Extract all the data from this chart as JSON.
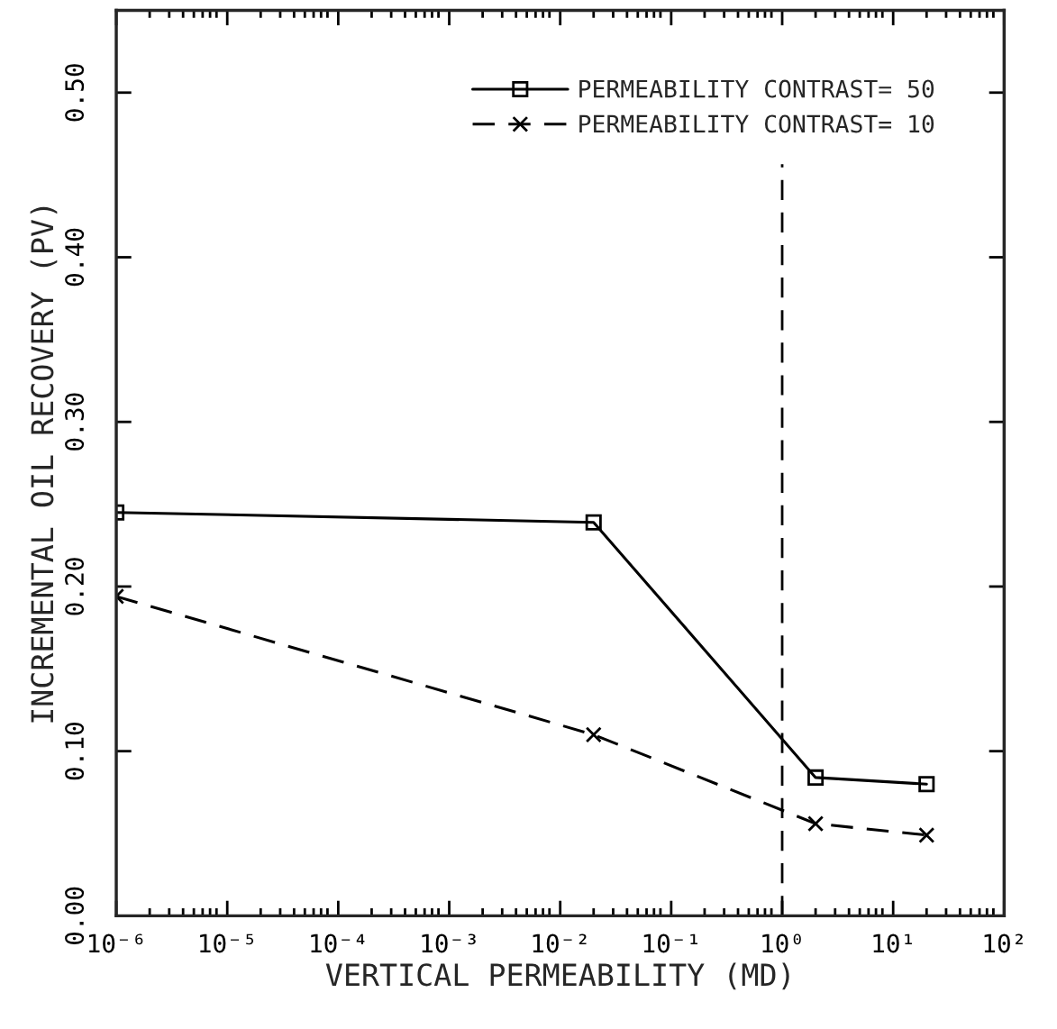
{
  "chart_data": {
    "type": "line",
    "xlabel": "VERTICAL PERMEABILITY (MD)",
    "ylabel": "INCREMENTAL OIL RECOVERY (PV)",
    "x": [
      1e-06,
      0.02,
      2,
      20
    ],
    "series": [
      {
        "name": "PERMEABILITY CONTRAST= 50",
        "color": "#000000",
        "marker": "square",
        "line_style": "solid",
        "values": [
          0.245,
          0.239,
          0.084,
          0.08
        ]
      },
      {
        "name": "PERMEABILITY CONTRAST= 10",
        "color": "#000000",
        "marker": "cross",
        "line_style": "dashed",
        "values": [
          0.194,
          0.11,
          0.056,
          0.049
        ]
      }
    ],
    "log": "x",
    "xlim": [
      1e-06,
      100
    ],
    "xticks": [
      {
        "value": 1e-06,
        "label": "10⁻⁶"
      },
      {
        "value": 1e-05,
        "label": "10⁻⁵"
      },
      {
        "value": 0.0001,
        "label": "10⁻⁴"
      },
      {
        "value": 0.001,
        "label": "10⁻³"
      },
      {
        "value": 0.01,
        "label": "10⁻²"
      },
      {
        "value": 0.1,
        "label": "10⁻¹"
      },
      {
        "value": 1,
        "label": "10⁰"
      },
      {
        "value": 10,
        "label": "10¹"
      },
      {
        "value": 100,
        "label": "10²"
      }
    ],
    "ylim": [
      0,
      0.55
    ],
    "yticks": [
      {
        "value": 0,
        "label": "0.00"
      },
      {
        "value": 0.1,
        "label": "0.10"
      },
      {
        "value": 0.2,
        "label": "0.20"
      },
      {
        "value": 0.3,
        "label": "0.30"
      },
      {
        "value": 0.4,
        "label": "0.40"
      },
      {
        "value": 0.5,
        "label": "0.50"
      }
    ],
    "ref_lines": [
      {
        "axis": "x",
        "value": 1,
        "color": "#000000",
        "line_style": "dashed"
      }
    ],
    "grid": false,
    "legend": "top right"
  }
}
